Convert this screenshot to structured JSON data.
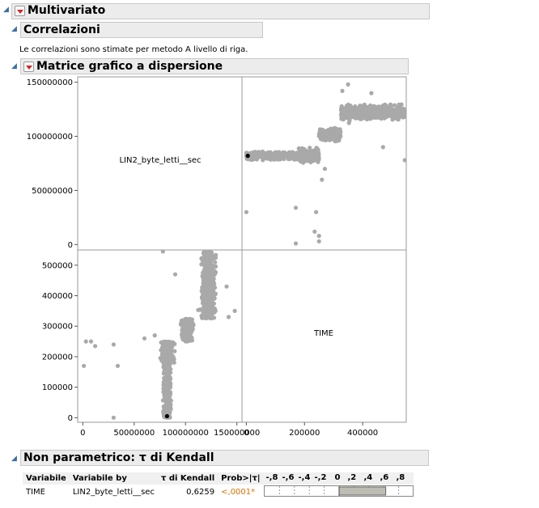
{
  "multivariato": {
    "title": "Multivariato"
  },
  "correlazioni": {
    "title": "Correlazioni",
    "note": "Le correlazioni sono stimate per metodo A livello di riga."
  },
  "matrice": {
    "title": "Matrice grafico a dispersione"
  },
  "kendall": {
    "title": "Non parametrico: τ di Kendall",
    "headers": [
      "Variabile",
      "Variabile by",
      "τ di Kendall",
      "Prob>|τ|"
    ],
    "bar_ticks": [
      "-,8",
      "-,6",
      "-,4",
      "-,2",
      "0",
      ",2",
      ",4",
      ",6",
      ",8"
    ],
    "row": {
      "variabile": "TIME",
      "variabile_by": "LIN2_byte_letti__sec",
      "tau": "0,6259",
      "prob": "<,0001*",
      "tau_value": 0.6259
    }
  },
  "colors": {
    "points": "#a9a9a9",
    "prob": "#e07000",
    "header_bg": "#ececec"
  },
  "chart_data": {
    "type": "scatter",
    "variables": [
      "LIN2_byte_letti__sec",
      "TIME"
    ],
    "axis_ticks": {
      "LIN2_byte_letti__sec": [
        "0",
        "50000000",
        "100000000",
        "150000000"
      ],
      "TIME": [
        "0",
        "100000",
        "200000",
        "300000",
        "400000",
        "500000",
        "0",
        "200000",
        "400000"
      ]
    },
    "axis_lims": {
      "LIN2_byte_letti__sec": [
        -5000000,
        155000000
      ],
      "TIME": [
        -15000,
        550000
      ]
    },
    "highlight_point": {
      "TIME": 5000,
      "LIN2_byte_letti__sec": 82000000
    },
    "clusters": [
      {
        "time": [
          0,
          180000
        ],
        "bytes": [
          78000000,
          86000000
        ],
        "n": 320
      },
      {
        "time": [
          180000,
          250000
        ],
        "bytes": [
          75000000,
          90000000
        ],
        "n": 200
      },
      {
        "time": [
          250000,
          325000
        ],
        "bytes": [
          95000000,
          108000000
        ],
        "n": 220
      },
      {
        "time": [
          325000,
          355000
        ],
        "bytes": [
          112000000,
          130000000
        ],
        "n": 80
      },
      {
        "time": [
          355000,
          545000
        ],
        "bytes": [
          115000000,
          130000000
        ],
        "n": 420
      }
    ],
    "outliers": [
      [
        0,
        30000000
      ],
      [
        170000,
        34000000
      ],
      [
        240000,
        30000000
      ],
      [
        235000,
        12000000
      ],
      [
        250000,
        8000000
      ],
      [
        170000,
        1000000
      ],
      [
        250000,
        3000000
      ],
      [
        260000,
        60000000
      ],
      [
        270000,
        70000000
      ],
      [
        545000,
        78000000
      ],
      [
        470000,
        90000000
      ],
      [
        350000,
        148000000
      ],
      [
        330000,
        142000000
      ],
      [
        430000,
        140000000
      ]
    ]
  }
}
